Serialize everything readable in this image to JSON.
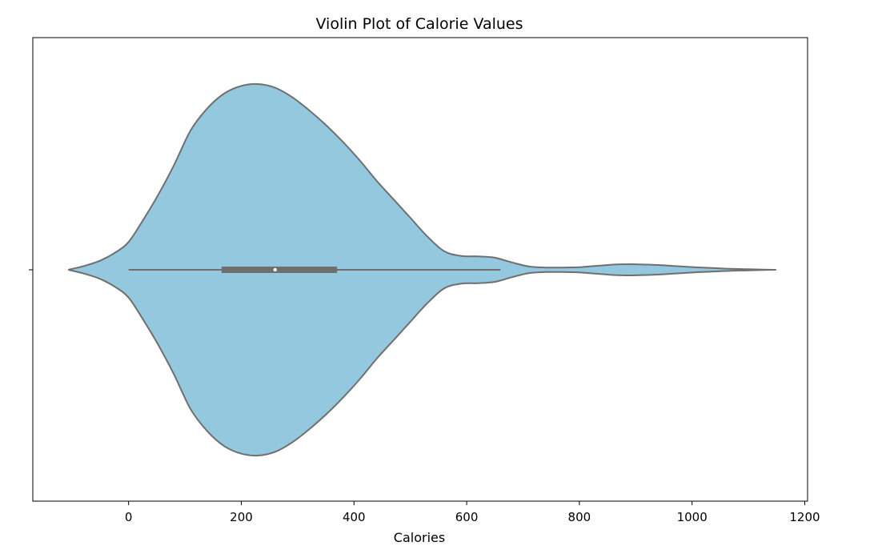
{
  "chart_data": {
    "type": "violin",
    "title": "Violin Plot of Calorie Values",
    "xlabel": "Calories",
    "ylabel": "",
    "xlim": [
      -170,
      1205
    ],
    "x_ticks": [
      0,
      200,
      400,
      600,
      800,
      1000,
      1200
    ],
    "orientation": "horizontal",
    "grid": false,
    "fill_color": "#93c8df",
    "edge_color": "#6f6f6f",
    "box": {
      "whisker_low": 0,
      "q1": 165,
      "median": 260,
      "q3": 370,
      "whisker_high": 660
    },
    "density": {
      "x": [
        -107,
        -80,
        -50,
        -20,
        0,
        20,
        50,
        80,
        110,
        140,
        170,
        200,
        230,
        260,
        290,
        320,
        350,
        380,
        410,
        440,
        470,
        500,
        530,
        560,
        590,
        620,
        650,
        680,
        710,
        740,
        770,
        800,
        830,
        860,
        890,
        920,
        950,
        980,
        1010,
        1040,
        1070,
        1100,
        1143
      ],
      "half_width": [
        0,
        0.02,
        0.05,
        0.1,
        0.15,
        0.24,
        0.39,
        0.56,
        0.75,
        0.87,
        0.95,
        0.99,
        1.0,
        0.98,
        0.93,
        0.86,
        0.78,
        0.69,
        0.59,
        0.48,
        0.38,
        0.28,
        0.18,
        0.1,
        0.075,
        0.072,
        0.065,
        0.04,
        0.018,
        0.012,
        0.012,
        0.014,
        0.021,
        0.028,
        0.03,
        0.028,
        0.024,
        0.018,
        0.013,
        0.009,
        0.005,
        0.003,
        0
      ]
    }
  }
}
